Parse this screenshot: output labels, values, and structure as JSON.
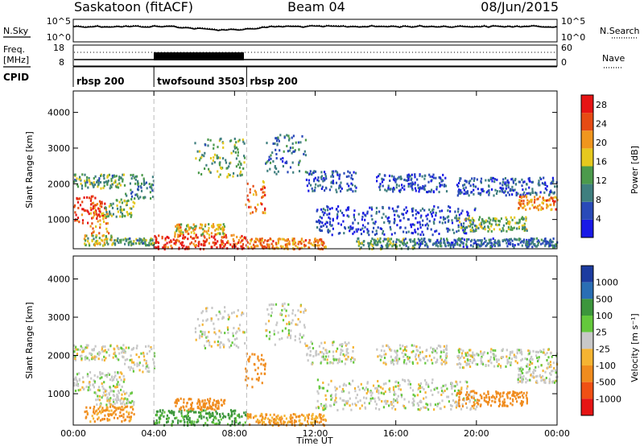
{
  "header": {
    "station": "Saskatoon (fitACF)",
    "beam": "Beam 04",
    "date": "08/Jun/2015"
  },
  "noise_panel": {
    "left_label": "N.Sky",
    "right_label": "N.Search",
    "left_ticks": [
      "10^5",
      "10^0"
    ],
    "right_ticks": [
      "10^5",
      "10^0"
    ]
  },
  "freq_panel": {
    "left_label_line1": "Freq.",
    "left_label_line2": "[MHz]",
    "left_ticks": [
      "18",
      "8"
    ],
    "right_ticks": [
      "60",
      "0"
    ],
    "right_label": "Nave"
  },
  "cpid_panel": {
    "label": "CPID",
    "segments": [
      {
        "name": "rbsp 200",
        "start_h": 0,
        "end_h": 4.0
      },
      {
        "name": "twofsound 3503",
        "start_h": 4.0,
        "end_h": 8.6
      },
      {
        "name": "rbsp 200",
        "start_h": 8.6,
        "end_h": 24
      }
    ]
  },
  "colors": {
    "power_scale": [
      "#1919e6",
      "#2a4ab8",
      "#3f7f7f",
      "#4c9a4c",
      "#e6c81e",
      "#f0961e",
      "#e64b14",
      "#e61414"
    ],
    "velocity_scale": [
      "#e61414",
      "#f05014",
      "#f08c1e",
      "#f5b432",
      "#c8c8c8",
      "#64c83c",
      "#3c963c",
      "#2a6eb4",
      "#1c3ca0"
    ],
    "gap": "#ffffff"
  },
  "chart_data": [
    {
      "type": "heatmap",
      "panel": "power",
      "ylabel": "Slant Range [km]",
      "xlabel": "",
      "xlim": [
        0,
        24
      ],
      "ylim": [
        180,
        4600
      ],
      "yticks": [
        "1000",
        "2000",
        "3000",
        "4000"
      ],
      "xticks": [
        "00:00",
        "04:00",
        "08:00",
        "12:00",
        "16:00",
        "20:00",
        "00:00"
      ],
      "colorbar": {
        "label": "Power [dB]",
        "ticks": [
          "4",
          "8",
          "12",
          "16",
          "20",
          "24",
          "28"
        ],
        "range": [
          0,
          30
        ]
      },
      "regions": [
        {
          "t": [
            0.0,
            1.6
          ],
          "r": [
            900,
            1700
          ],
          "v": 26
        },
        {
          "t": [
            0.8,
            1.8
          ],
          "r": [
            600,
            1500
          ],
          "v": 22
        },
        {
          "t": [
            0.0,
            2.5
          ],
          "r": [
            1900,
            2300
          ],
          "v": 12
        },
        {
          "t": [
            1.5,
            3.0
          ],
          "r": [
            1100,
            1600
          ],
          "v": 14
        },
        {
          "t": [
            2.5,
            4.0
          ],
          "r": [
            1600,
            2300
          ],
          "v": 10
        },
        {
          "t": [
            0.5,
            2.0
          ],
          "r": [
            300,
            600
          ],
          "v": 16
        },
        {
          "t": [
            2.0,
            4.0
          ],
          "r": [
            300,
            500
          ],
          "v": 12
        },
        {
          "t": [
            4.0,
            8.6
          ],
          "r": [
            200,
            600
          ],
          "v": 26
        },
        {
          "t": [
            5.0,
            7.5
          ],
          "r": [
            600,
            900
          ],
          "v": 18
        },
        {
          "t": [
            6.0,
            8.5
          ],
          "r": [
            2200,
            3300
          ],
          "v": 12
        },
        {
          "t": [
            8.5,
            9.5
          ],
          "r": [
            1200,
            2100
          ],
          "v": 22
        },
        {
          "t": [
            8.6,
            12.5
          ],
          "r": [
            200,
            500
          ],
          "v": 22
        },
        {
          "t": [
            9.5,
            11.5
          ],
          "r": [
            2300,
            3400
          ],
          "v": 8
        },
        {
          "t": [
            11.5,
            14.0
          ],
          "r": [
            1800,
            2400
          ],
          "v": 6
        },
        {
          "t": [
            12.0,
            20.0
          ],
          "r": [
            600,
            1400
          ],
          "v": 5
        },
        {
          "t": [
            14.0,
            17.0
          ],
          "r": [
            200,
            500
          ],
          "v": 12
        },
        {
          "t": [
            15.0,
            18.5
          ],
          "r": [
            1800,
            2300
          ],
          "v": 6
        },
        {
          "t": [
            19.0,
            22.5
          ],
          "r": [
            700,
            1100
          ],
          "v": 14
        },
        {
          "t": [
            19.0,
            24.0
          ],
          "r": [
            1700,
            2200
          ],
          "v": 6
        },
        {
          "t": [
            22.0,
            24.0
          ],
          "r": [
            1300,
            1700
          ],
          "v": 22
        },
        {
          "t": [
            17.0,
            24.0
          ],
          "r": [
            250,
            500
          ],
          "v": 8
        }
      ]
    },
    {
      "type": "heatmap",
      "panel": "velocity",
      "ylabel": "Slant Range [km]",
      "xlabel": "Time UT",
      "xlim": [
        0,
        24
      ],
      "ylim": [
        180,
        4600
      ],
      "yticks": [
        "1000",
        "2000",
        "3000",
        "4000"
      ],
      "xticks": [
        "00:00",
        "04:00",
        "08:00",
        "12:00",
        "16:00",
        "20:00",
        "00:00"
      ],
      "colorbar": {
        "label": "Velocity [m s⁻¹]",
        "ticks": [
          "1000",
          "500",
          "100",
          "25",
          "-25",
          "-100",
          "-500",
          "-1000"
        ]
      },
      "regions": [
        {
          "t": [
            0.0,
            2.5
          ],
          "r": [
            1100,
            1600
          ],
          "v": 0
        },
        {
          "t": [
            1.0,
            3.0
          ],
          "r": [
            700,
            1100
          ],
          "v": 0
        },
        {
          "t": [
            0.0,
            2.5
          ],
          "r": [
            1900,
            2300
          ],
          "v": 0
        },
        {
          "t": [
            2.5,
            4.0
          ],
          "r": [
            1600,
            2300
          ],
          "v": 0
        },
        {
          "t": [
            0.5,
            3.0
          ],
          "r": [
            300,
            700
          ],
          "v": -120
        },
        {
          "t": [
            4.0,
            8.6
          ],
          "r": [
            200,
            600
          ],
          "v": 120
        },
        {
          "t": [
            5.0,
            7.5
          ],
          "r": [
            600,
            900
          ],
          "v": -150
        },
        {
          "t": [
            6.0,
            8.5
          ],
          "r": [
            2200,
            3300
          ],
          "v": 0
        },
        {
          "t": [
            8.5,
            9.5
          ],
          "r": [
            1200,
            2100
          ],
          "v": -200
        },
        {
          "t": [
            8.6,
            12.5
          ],
          "r": [
            200,
            500
          ],
          "v": -100
        },
        {
          "t": [
            9.5,
            11.5
          ],
          "r": [
            2300,
            3400
          ],
          "v": 0
        },
        {
          "t": [
            11.5,
            14.0
          ],
          "r": [
            1800,
            2400
          ],
          "v": 0
        },
        {
          "t": [
            12.0,
            20.0
          ],
          "r": [
            600,
            1400
          ],
          "v": 0
        },
        {
          "t": [
            15.0,
            18.5
          ],
          "r": [
            1800,
            2300
          ],
          "v": 0
        },
        {
          "t": [
            19.0,
            22.5
          ],
          "r": [
            700,
            1100
          ],
          "v": -200
        },
        {
          "t": [
            19.0,
            24.0
          ],
          "r": [
            1700,
            2200
          ],
          "v": 0
        },
        {
          "t": [
            22.0,
            24.0
          ],
          "r": [
            1300,
            1700
          ],
          "v": 0
        }
      ]
    }
  ]
}
